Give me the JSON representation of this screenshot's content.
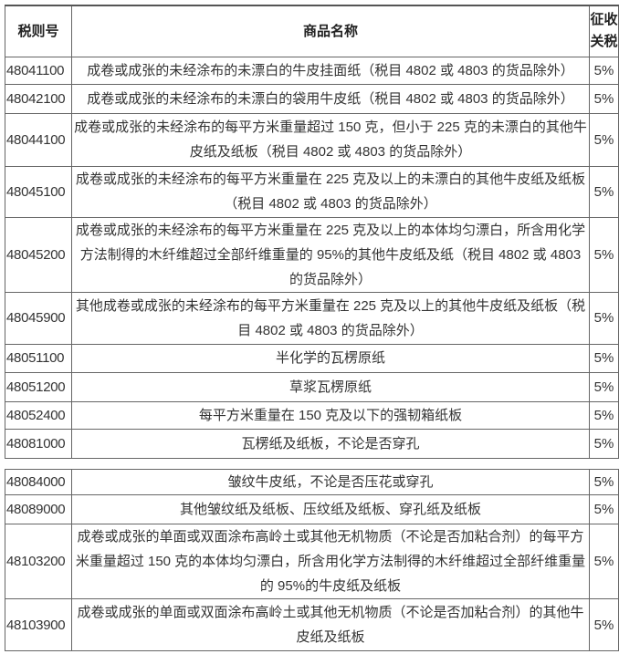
{
  "headers": {
    "code": "税则号",
    "name": "商品名称",
    "duty": "征收关税"
  },
  "rows": [
    {
      "code": "48041100",
      "name": "成卷或成张的未经涂布的未漂白的牛皮挂面纸（税目 4802 或 4803 的货品除外）",
      "duty": "5%"
    },
    {
      "code": "48042100",
      "name": "成卷或成张的未经涂布的未漂白的袋用牛皮纸（税目 4802 或 4803 的货品除外）",
      "duty": "5%"
    },
    {
      "code": "48044100",
      "name": "成卷或成张的未经涂布的每平方米重量超过 150 克，但小于 225 克的未漂白的其他牛皮纸及纸板（税目 4802 或 4803 的货品除外）",
      "duty": "5%"
    },
    {
      "code": "48045100",
      "name": "成卷或成张的未经涂布的每平方米重量在 225 克及以上的未漂白的其他牛皮纸及纸板（税目 4802 或 4803 的货品除外）",
      "duty": "5%"
    },
    {
      "code": "48045200",
      "name": "成卷或成张的未经涂布的每平方米重量在 225 克及以上的本体均匀漂白，所含用化学方法制得的木纤维超过全部纤维重量的 95%的其他牛皮纸及纸（税目 4802 或 4803 的货品除外）",
      "duty": "5%"
    },
    {
      "code": "48045900",
      "name": "其他成卷或成张的未经涂布的每平方米重量在 225 克及以上的其他牛皮纸及纸板（税目 4802 或 4803 的货品除外）",
      "duty": "5%"
    },
    {
      "code": "48051100",
      "name": "半化学的瓦楞原纸",
      "duty": "5%"
    },
    {
      "code": "48051200",
      "name": "草浆瓦楞原纸",
      "duty": "5%"
    },
    {
      "code": "48052400",
      "name": "每平方米重量在 150 克及以下的强韧箱纸板",
      "duty": "5%"
    },
    {
      "code": "48081000",
      "name": "瓦楞纸及纸板，不论是否穿孔",
      "duty": "5%"
    },
    {
      "code": "48084000",
      "name": "皱纹牛皮纸，不论是否压花或穿孔",
      "duty": "5%"
    },
    {
      "code": "48089000",
      "name": "其他皱纹纸及纸板、压纹纸及纸板、穿孔纸及纸板",
      "duty": "5%"
    },
    {
      "code": "48103200",
      "name": "成卷或成张的单面或双面涂布高岭土或其他无机物质（不论是否加粘合剂）的每平方米重量超过 150 克的本体均匀漂白，所含用化学方法制得的木纤维超过全部纤维重量的 95%的牛皮纸及纸板",
      "duty": "5%"
    },
    {
      "code": "48103900",
      "name": "成卷或成张的单面或双面涂布高岭土或其他无机物质（不论是否加粘合剂）的其他牛皮纸及纸板",
      "duty": "5%"
    }
  ]
}
